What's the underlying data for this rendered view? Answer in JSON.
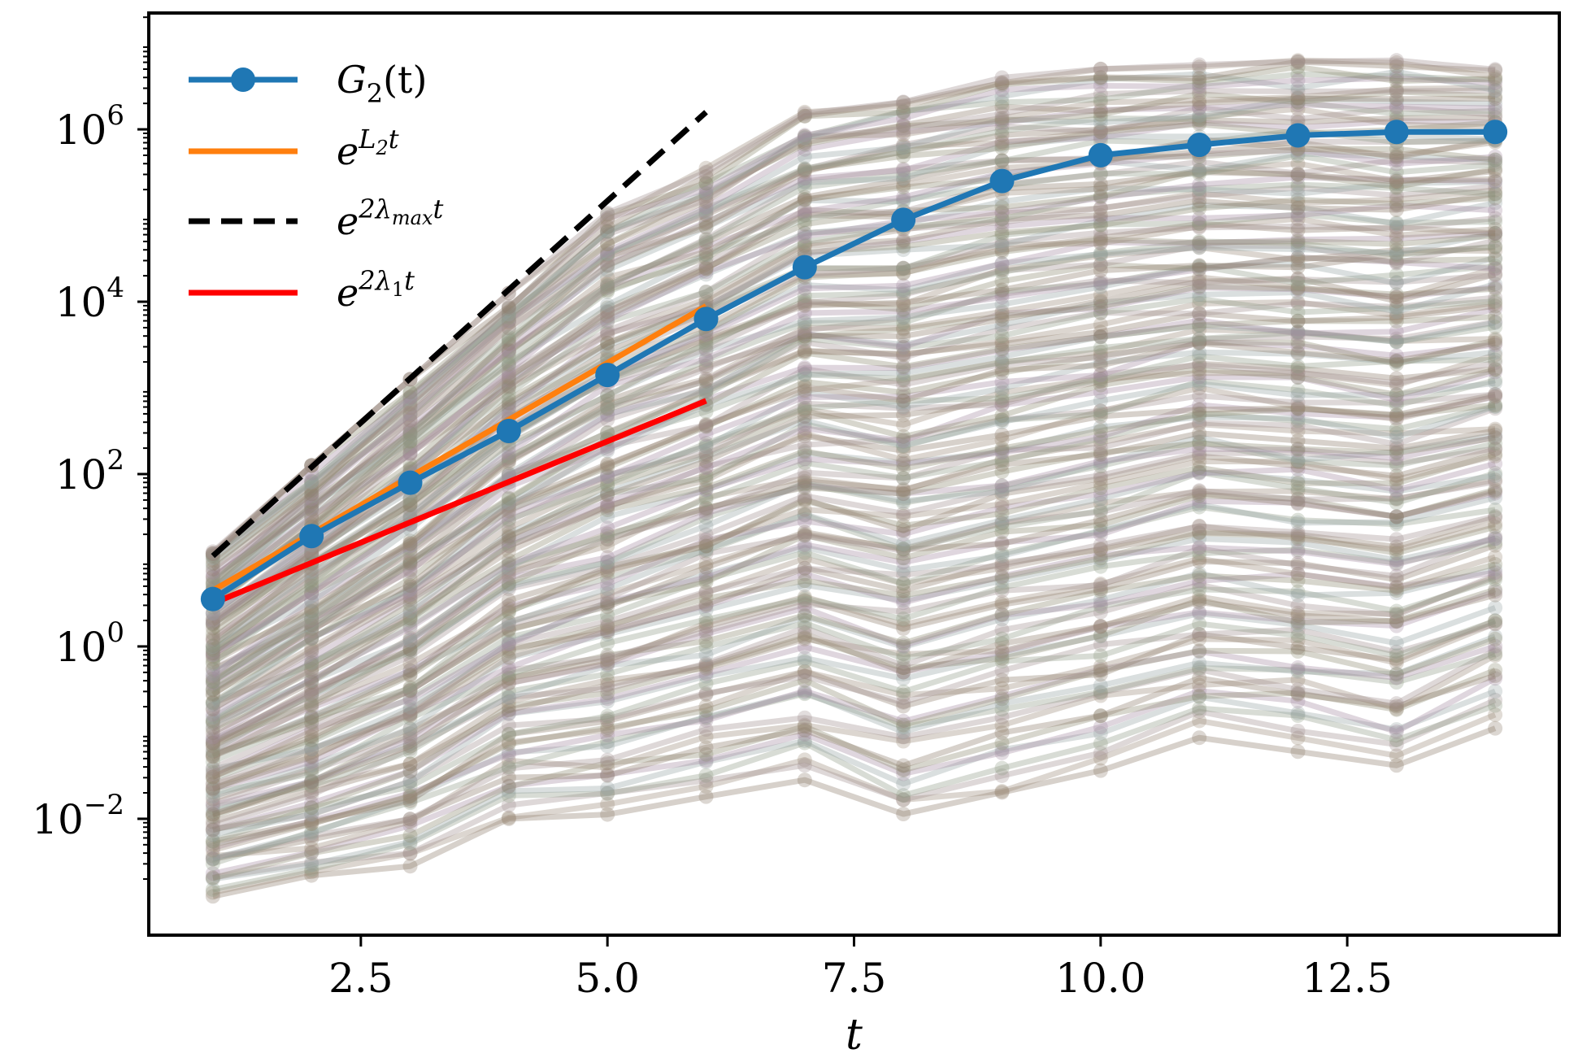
{
  "chart_data": {
    "type": "line",
    "xlabel": "t",
    "ylabel": "",
    "yscale": "log",
    "xlim": [
      0.35,
      14.65
    ],
    "ylim_log10": [
      -3.35,
      7.35
    ],
    "x_ticks": [
      2.5,
      5.0,
      7.5,
      10.0,
      12.5
    ],
    "x_tick_labels": [
      "2.5",
      "5.0",
      "7.5",
      "10.0",
      "12.5"
    ],
    "y_tick_exponents": [
      -2,
      0,
      2,
      4,
      6
    ],
    "grid": false,
    "legend_position": "top-left",
    "colors": {
      "g2": "#1f77b4",
      "fit_L2": "#ff7f0e",
      "lambda_max": "#000000",
      "lambda_1": "#ff0000",
      "ensemble": "#8c7a6a"
    },
    "legend": [
      {
        "key": "g2",
        "label_base": "G",
        "label_sub": "2",
        "label_rest": "(t)",
        "style": "line-marker"
      },
      {
        "key": "fit_L2",
        "label_base": "e",
        "label_sup": "L",
        "label_supsub": "2",
        "label_suprest": "t",
        "style": "solid"
      },
      {
        "key": "lambda_max",
        "label_base": "e",
        "label_sup": "2λ",
        "label_supsub": "max",
        "label_suprest": "t",
        "style": "dashed"
      },
      {
        "key": "lambda_1",
        "label_base": "e",
        "label_sup": "2λ",
        "label_supsub": "1",
        "label_suprest": "t",
        "style": "solid"
      }
    ],
    "series": [
      {
        "name": "G_2(t)",
        "x": [
          1,
          2,
          3,
          4,
          5,
          6,
          7,
          8,
          9,
          10,
          11,
          12,
          13,
          14
        ],
        "y_log10": [
          0.55,
          1.28,
          1.9,
          2.5,
          3.15,
          3.8,
          4.4,
          4.95,
          5.4,
          5.7,
          5.82,
          5.93,
          5.97,
          5.97
        ]
      },
      {
        "name": "e^{L_2 t}",
        "x": [
          1,
          6
        ],
        "y_log10": [
          0.65,
          3.95
        ]
      },
      {
        "name": "e^{2 lambda_max t}",
        "x": [
          1,
          6
        ],
        "y_log10": [
          1.05,
          6.2
        ]
      },
      {
        "name": "e^{2 lambda_1 t}",
        "x": [
          1,
          6
        ],
        "y_log10": [
          0.5,
          2.85
        ]
      }
    ],
    "ensemble_envelope": {
      "x": [
        1,
        2,
        3,
        4,
        5,
        6,
        7,
        8,
        9,
        10,
        11,
        12,
        13,
        14
      ],
      "upper_log10": [
        1.1,
        2.1,
        3.1,
        4.1,
        5.05,
        5.55,
        6.2,
        6.4,
        6.6,
        6.7,
        6.75,
        6.8,
        6.8,
        6.75
      ],
      "lower_log10": [
        -2.9,
        -2.75,
        -2.55,
        -2.0,
        -2.0,
        -1.75,
        -1.55,
        -2.0,
        -1.75,
        -1.45,
        -1.1,
        -1.25,
        -1.45,
        -0.95
      ]
    }
  }
}
